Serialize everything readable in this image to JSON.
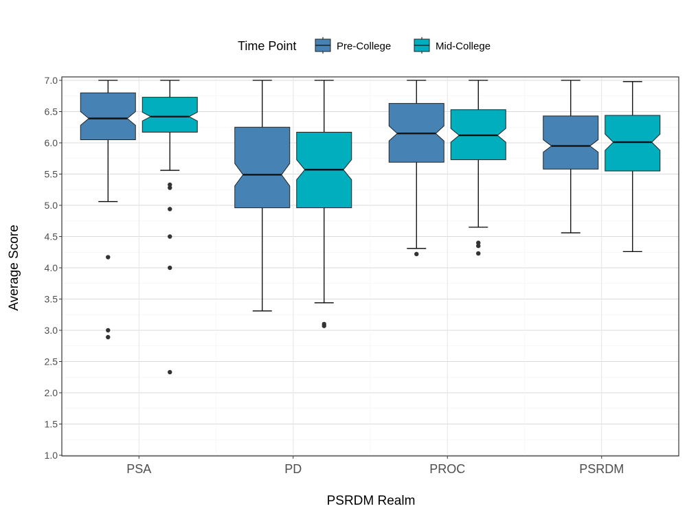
{
  "chart_data": {
    "type": "box",
    "notched": true,
    "xlabel": "PSRDM Realm",
    "ylabel": "Average Score",
    "ylim": [
      1.0,
      7.0
    ],
    "yticks": [
      "1.0",
      "1.5",
      "2.0",
      "2.5",
      "3.0",
      "3.5",
      "4.0",
      "4.5",
      "5.0",
      "5.5",
      "6.0",
      "6.5",
      "7.0"
    ],
    "grid": true,
    "legend": {
      "title": "Time Point",
      "position": "top",
      "entries": [
        {
          "name": "Pre-College",
          "color": "#4682b4"
        },
        {
          "name": "Mid-College",
          "color": "#00aebe"
        }
      ]
    },
    "categories": [
      "PSA",
      "PD",
      "PROC",
      "PSRDM"
    ],
    "series": [
      {
        "name": "Pre-College",
        "color": "#4682b4",
        "boxes": [
          {
            "whisker_low": 5.06,
            "q1": 6.05,
            "median": 6.39,
            "q3": 6.8,
            "whisker_high": 7.0,
            "notch_low": 6.28,
            "notch_high": 6.5,
            "outliers": [
              4.17,
              3.0,
              2.89
            ]
          },
          {
            "whisker_low": 3.31,
            "q1": 4.96,
            "median": 5.49,
            "q3": 6.25,
            "whisker_high": 7.0,
            "notch_low": 5.31,
            "notch_high": 5.67,
            "outliers": []
          },
          {
            "whisker_low": 4.31,
            "q1": 5.69,
            "median": 6.15,
            "q3": 6.63,
            "whisker_high": 7.0,
            "notch_low": 6.03,
            "notch_high": 6.27,
            "outliers": [
              4.22
            ]
          },
          {
            "whisker_low": 4.56,
            "q1": 5.58,
            "median": 5.95,
            "q3": 6.43,
            "whisker_high": 7.0,
            "notch_low": 5.85,
            "notch_high": 6.05,
            "outliers": []
          }
        ]
      },
      {
        "name": "Mid-College",
        "color": "#00aebe",
        "boxes": [
          {
            "whisker_low": 5.56,
            "q1": 6.17,
            "median": 6.42,
            "q3": 6.73,
            "whisker_high": 7.0,
            "notch_low": 6.35,
            "notch_high": 6.49,
            "outliers": [
              5.33,
              5.28,
              4.94,
              4.5,
              4.0,
              2.33
            ]
          },
          {
            "whisker_low": 3.44,
            "q1": 4.96,
            "median": 5.57,
            "q3": 6.17,
            "whisker_high": 7.0,
            "notch_low": 5.41,
            "notch_high": 5.73,
            "outliers": [
              3.1,
              3.07
            ]
          },
          {
            "whisker_low": 4.65,
            "q1": 5.73,
            "median": 6.12,
            "q3": 6.53,
            "whisker_high": 7.0,
            "notch_low": 6.01,
            "notch_high": 6.23,
            "outliers": [
              4.4,
              4.35,
              4.23
            ]
          },
          {
            "whisker_low": 4.26,
            "q1": 5.55,
            "median": 6.01,
            "q3": 6.44,
            "whisker_high": 6.98,
            "notch_low": 5.88,
            "notch_high": 6.14,
            "outliers": []
          }
        ]
      }
    ]
  }
}
